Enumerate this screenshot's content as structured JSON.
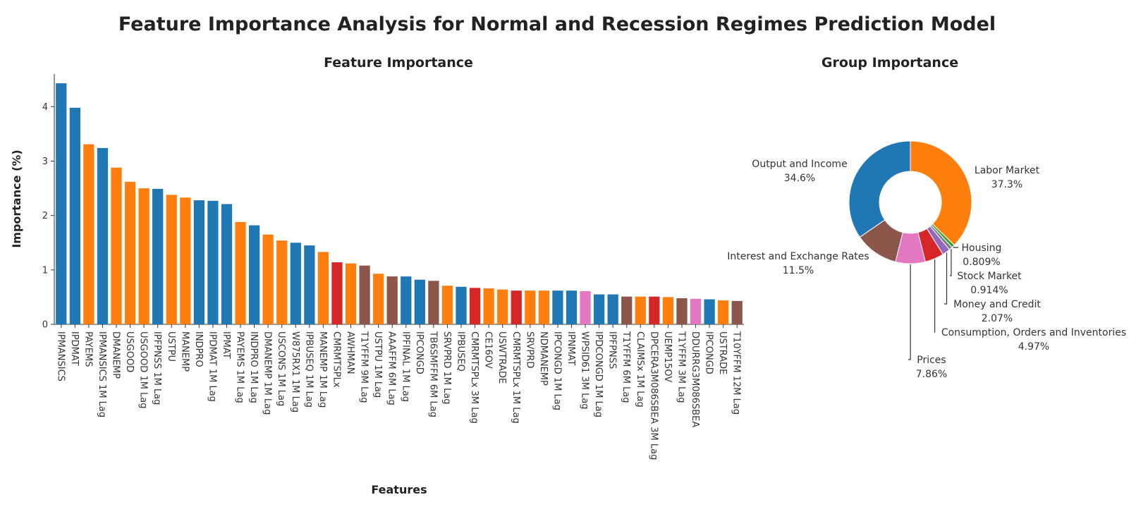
{
  "figure": {
    "title": "Feature Importance Analysis for Normal and Recession Regimes Prediction Model"
  },
  "chart_data": [
    {
      "type": "bar",
      "title": "Feature Importance",
      "xlabel": "Features",
      "ylabel": "Importance (%)",
      "ylim": [
        0,
        4.6
      ],
      "yticks": [
        0,
        1,
        2,
        3,
        4
      ],
      "grid": false,
      "categories": [
        "IPMANSICS",
        "IPDMAT",
        "PAYEMS",
        "IPMANSICS 1M Lag",
        "DMANEMP",
        "USGOOD",
        "USGOOD 1M Lag",
        "IPFPNSS 1M Lag",
        "USTPU",
        "MANEMP",
        "INDPRO",
        "IPDMAT 1M Lag",
        "IPMAT",
        "PAYEMS 1M Lag",
        "INDPRO 1M Lag",
        "DMANEMP 1M Lag",
        "USCONS 1M Lag",
        "W875RX1 1M Lag",
        "IPBUSEQ 1M Lag",
        "MANEMP 1M Lag",
        "CMRMTSPLx",
        "AWHMAN",
        "T1YFFM 9M Lag",
        "USTPU 1M Lag",
        "AAAFFM 6M Lag",
        "IPFINAL 1M Lag",
        "IPCONGD",
        "TB6SMFFM 6M Lag",
        "SRVPRD 1M Lag",
        "IPBUSEQ",
        "CMRMTSPLx 3M Lag",
        "CE16OV",
        "USWTRADE",
        "CMRMTSPLx 1M Lag",
        "SRVPRD",
        "NDMANEMP",
        "IPCONGD 1M Lag",
        "IPNMAT",
        "WPSID61 3M Lag",
        "IPDCONGD 1M Lag",
        "IPFPNSS",
        "T1YFFM 6M Lag",
        "CLAIMSx 1M Lag",
        "DPCERA3M086SBEA 3M Lag",
        "UEMP15OV",
        "T1YFFM 3M Lag",
        "DDURRG3M086SBEA",
        "IPCONGD",
        "USTRADE",
        "T10YFFM 12M Lag"
      ],
      "values": [
        4.43,
        3.98,
        3.31,
        3.24,
        2.88,
        2.62,
        2.5,
        2.49,
        2.38,
        2.33,
        2.28,
        2.27,
        2.21,
        1.88,
        1.82,
        1.65,
        1.54,
        1.5,
        1.45,
        1.33,
        1.14,
        1.12,
        1.08,
        0.93,
        0.88,
        0.88,
        0.82,
        0.8,
        0.71,
        0.69,
        0.67,
        0.66,
        0.64,
        0.62,
        0.62,
        0.62,
        0.62,
        0.62,
        0.61,
        0.55,
        0.55,
        0.51,
        0.51,
        0.51,
        0.5,
        0.48,
        0.47,
        0.46,
        0.44,
        0.43
      ],
      "groups": [
        "Output and Income",
        "Output and Income",
        "Labor Market",
        "Output and Income",
        "Labor Market",
        "Labor Market",
        "Labor Market",
        "Output and Income",
        "Labor Market",
        "Labor Market",
        "Output and Income",
        "Output and Income",
        "Output and Income",
        "Labor Market",
        "Output and Income",
        "Labor Market",
        "Labor Market",
        "Output and Income",
        "Output and Income",
        "Labor Market",
        "Consumption, Orders and Inventories",
        "Labor Market",
        "Interest and Exchange Rates",
        "Labor Market",
        "Interest and Exchange Rates",
        "Output and Income",
        "Output and Income",
        "Interest and Exchange Rates",
        "Labor Market",
        "Output and Income",
        "Consumption, Orders and Inventories",
        "Labor Market",
        "Labor Market",
        "Consumption, Orders and Inventories",
        "Labor Market",
        "Labor Market",
        "Output and Income",
        "Output and Income",
        "Prices",
        "Output and Income",
        "Output and Income",
        "Interest and Exchange Rates",
        "Labor Market",
        "Consumption, Orders and Inventories",
        "Labor Market",
        "Interest and Exchange Rates",
        "Prices",
        "Output and Income",
        "Labor Market",
        "Interest and Exchange Rates"
      ]
    },
    {
      "type": "pie",
      "title": "Group Importance",
      "hole": true,
      "labels": [
        "Labor Market",
        "Housing",
        "Stock Market",
        "Money and Credit",
        "Consumption, Orders and Inventories",
        "Prices",
        "Interest and Exchange Rates",
        "Output and Income"
      ],
      "values": [
        37.3,
        0.809,
        0.914,
        2.07,
        4.97,
        7.86,
        11.5,
        34.6
      ],
      "value_labels": [
        "37.3%",
        "0.809%",
        "0.914%",
        "2.07%",
        "4.97%",
        "7.86%",
        "11.5%",
        "34.6%"
      ]
    }
  ],
  "colors": {
    "Output and Income": "#1f77b4",
    "Labor Market": "#ff7f0e",
    "Housing": "#2ca02c",
    "Consumption, Orders and Inventories": "#d62728",
    "Money and Credit": "#9467bd",
    "Interest and Exchange Rates": "#8c564b",
    "Prices": "#e377c2",
    "Stock Market": "#7f7f7f"
  }
}
